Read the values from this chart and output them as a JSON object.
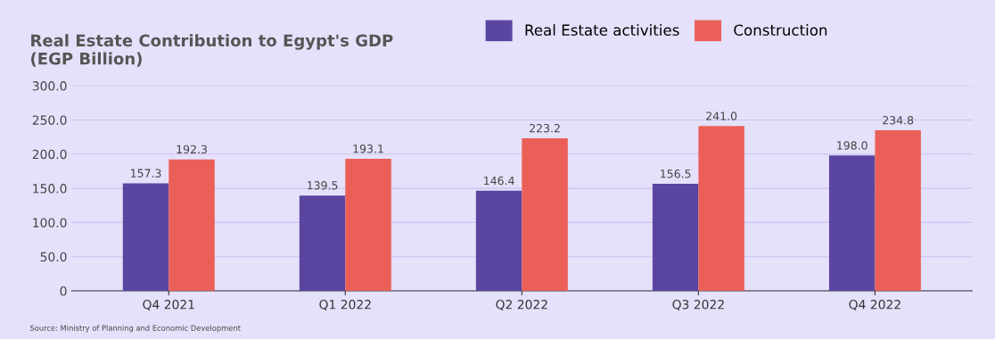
{
  "chart_data": {
    "type": "bar",
    "title": "Real Estate Contribution to Egypt's GDP\n(EGP Billion)",
    "categories": [
      "Q4 2021",
      "Q1 2022",
      "Q2 2022",
      "Q3 2022",
      "Q4 2022"
    ],
    "series": [
      {
        "name": "Real Estate activities",
        "color": "#5a45a0",
        "values": [
          157.3,
          139.5,
          146.4,
          156.5,
          198.0
        ],
        "value_labels": [
          "157.3",
          "139.5",
          "146.4",
          "156.5",
          "198.0"
        ]
      },
      {
        "name": "Construction",
        "color": "#ea6058",
        "values": [
          192.3,
          193.1,
          223.2,
          241.0,
          234.8
        ],
        "value_labels": [
          "192.3",
          "193.1",
          "223.2",
          "241.0",
          "234.8"
        ]
      }
    ],
    "ylim": [
      0,
      300
    ],
    "yticks": [
      0,
      {
        "value": 50,
        "label": "50.0"
      },
      {
        "value": 100,
        "label": "100.0"
      },
      {
        "value": 150,
        "label": "150.0"
      },
      {
        "value": 200,
        "label": "200.0"
      },
      {
        "value": 250,
        "label": "250.0"
      },
      {
        "value": 300,
        "label": "300.0"
      }
    ],
    "grid": "y",
    "legend": "top",
    "annotations": [
      "Source: Ministry of Planning and Economic Development"
    ]
  }
}
